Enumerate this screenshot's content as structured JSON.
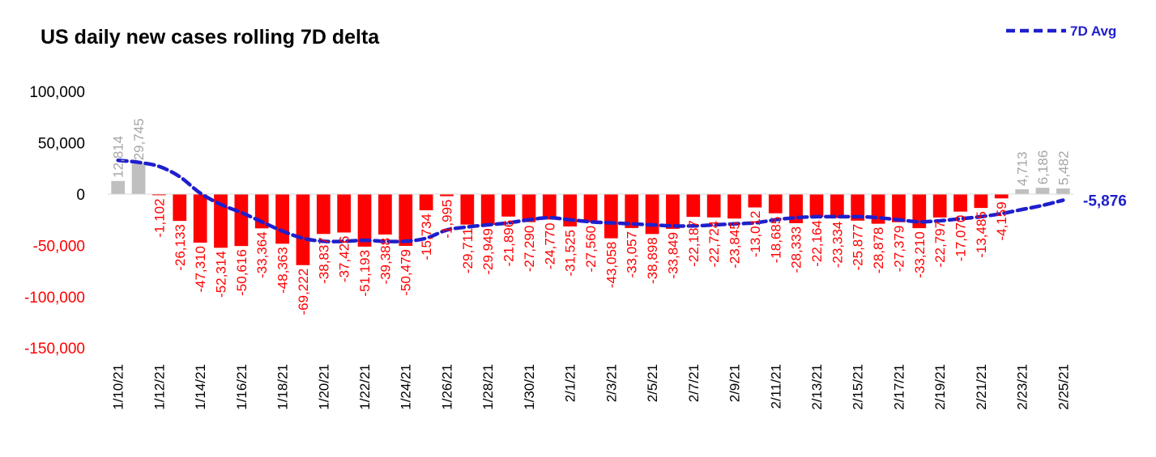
{
  "chart_data": {
    "type": "bar",
    "title": "US daily new cases rolling 7D delta",
    "xlabel": "",
    "ylabel": "",
    "ylim": [
      -150000,
      100000
    ],
    "yticks": [
      100000,
      50000,
      0,
      -50000,
      -100000,
      -150000
    ],
    "ytick_labels": [
      "100,000",
      "50,000",
      "0",
      "-50,000",
      "-100,000",
      "-150,000"
    ],
    "categories": [
      "1/10/21",
      "1/11/21",
      "1/12/21",
      "1/13/21",
      "1/14/21",
      "1/15/21",
      "1/16/21",
      "1/17/21",
      "1/18/21",
      "1/19/21",
      "1/20/21",
      "1/21/21",
      "1/22/21",
      "1/23/21",
      "1/24/21",
      "1/25/21",
      "1/26/21",
      "1/27/21",
      "1/28/21",
      "1/29/21",
      "1/30/21",
      "1/31/21",
      "2/1/21",
      "2/2/21",
      "2/3/21",
      "2/4/21",
      "2/5/21",
      "2/6/21",
      "2/7/21",
      "2/8/21",
      "2/9/21",
      "2/10/21",
      "2/11/21",
      "2/12/21",
      "2/13/21",
      "2/14/21",
      "2/15/21",
      "2/16/21",
      "2/17/21",
      "2/18/21",
      "2/19/21",
      "2/20/21",
      "2/21/21",
      "2/22/21",
      "2/23/21",
      "2/24/21",
      "2/25/21"
    ],
    "xtick_labels": [
      "1/10/21",
      "1/12/21",
      "1/14/21",
      "1/16/21",
      "1/18/21",
      "1/20/21",
      "1/22/21",
      "1/24/21",
      "1/26/21",
      "1/28/21",
      "1/30/21",
      "2/1/21",
      "2/3/21",
      "2/5/21",
      "2/7/21",
      "2/9/21",
      "2/11/21",
      "2/13/21",
      "2/15/21",
      "2/17/21",
      "2/19/21",
      "2/21/21",
      "2/23/21",
      "2/25/21"
    ],
    "values": [
      12814,
      29745,
      -1102,
      -26133,
      -47310,
      -52314,
      -50616,
      -33364,
      -48363,
      -69222,
      -38837,
      -37426,
      -51193,
      -39388,
      -50479,
      -15734,
      -1995,
      -29711,
      -29949,
      -21896,
      -27290,
      -24770,
      -31525,
      -27560,
      -43058,
      -33057,
      -38898,
      -33849,
      -22187,
      -22724,
      -23845,
      -13012,
      -18685,
      -28333,
      -22164,
      -23334,
      -25877,
      -28878,
      -27379,
      -33210,
      -22797,
      -17070,
      -13485,
      -4159,
      4713,
      6186,
      5482
    ],
    "value_labels": [
      "12,814",
      "29,745",
      "-1,102",
      "-26,133",
      "-47,310",
      "-52,314",
      "-50,616",
      "-33,364",
      "-48,363",
      "-69,222",
      "-38,837",
      "-37,426",
      "-51,193",
      "-39,388",
      "-50,479",
      "-15,734",
      "-1,995",
      "-29,711",
      "-29,949",
      "-21,896",
      "-27,290",
      "-24,770",
      "-31,525",
      "-27,560",
      "-43,058",
      "-33,057",
      "-38,898",
      "-33,849",
      "-22,187",
      "-22,724",
      "-23,845",
      "-13,012",
      "-18,685",
      "-28,333",
      "-22,164",
      "-23,334",
      "-25,877",
      "-28,878",
      "-27,379",
      "-33,210",
      "-22,797",
      "-17,070",
      "-13,485",
      "-4,159",
      "4,713",
      "6,186",
      "5,482"
    ],
    "avg_series": {
      "name": "7D Avg",
      "values": [
        33000,
        31000,
        27000,
        17000,
        1000,
        -10000,
        -18000,
        -27000,
        -36000,
        -43000,
        -46000,
        -46000,
        -45000,
        -46000,
        -46000,
        -43000,
        -35000,
        -32000,
        -30000,
        -28000,
        -25000,
        -23000,
        -25000,
        -27000,
        -28000,
        -29000,
        -30000,
        -31000,
        -31000,
        -30000,
        -29000,
        -28000,
        -25000,
        -23000,
        -22000,
        -22000,
        -22000,
        -23000,
        -25000,
        -27000,
        -26000,
        -24000,
        -22000,
        -19000,
        -15000,
        -11000,
        -5876
      ],
      "last_label": "-5,876"
    },
    "colors": {
      "negative": "#ff0000",
      "positive": "#bfbfbf",
      "avg_line": "#1f1fcc",
      "neg_label": "#ff0000",
      "pos_label": "#a6a6a6"
    },
    "legend": {
      "position": "top-right",
      "label": "7D Avg"
    },
    "grid": false
  }
}
